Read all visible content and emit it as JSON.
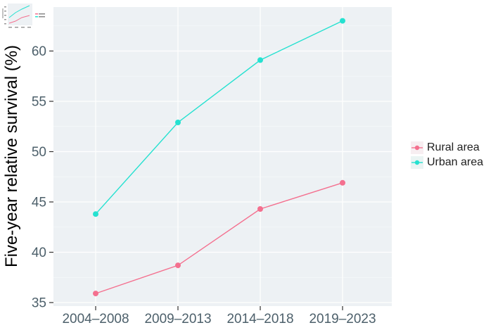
{
  "figure": {
    "background": "#ffffff",
    "panel_background": "#EDF1F4",
    "gridline_color": "#FFFFFF",
    "tick_color": "#333333",
    "tick_label_color": "#4D606B",
    "axis_title_color": "#000000"
  },
  "chart_data": {
    "type": "line",
    "title": "",
    "xlabel": "",
    "ylabel": "Five-year relative survival (%)",
    "categories": [
      "2004–2008",
      "2009–2013",
      "2014–2018",
      "2019–2023"
    ],
    "series": [
      {
        "name": "Rural area",
        "color": "#F4708F",
        "key_fill": "#F7EEF1",
        "values": [
          35.9,
          38.7,
          44.3,
          46.9
        ]
      },
      {
        "name": "Urban area",
        "color": "#25E1D0",
        "key_fill": "#EAF4F3",
        "values": [
          43.8,
          52.9,
          59.1,
          63.0
        ]
      }
    ],
    "yticks": [
      35,
      40,
      45,
      50,
      55,
      60
    ],
    "ylim": [
      34.6,
      64.4
    ],
    "grid": true,
    "legend_position": "right"
  }
}
